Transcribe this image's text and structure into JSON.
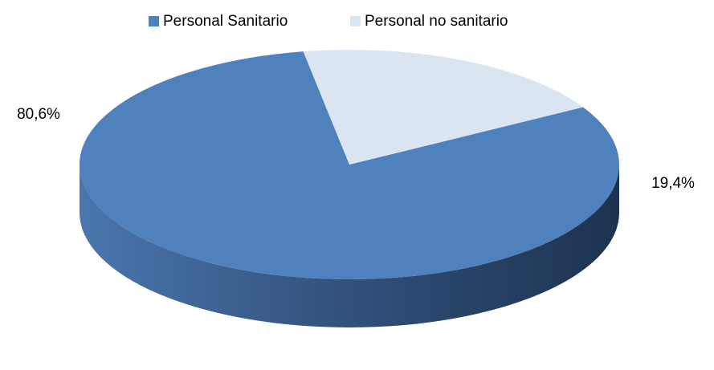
{
  "chart_data": {
    "type": "pie",
    "categories": [
      "Personal Sanitario",
      "Personal no sanitario"
    ],
    "values": [
      80.6,
      19.4
    ],
    "value_labels": [
      "80,6%",
      "19,4%"
    ],
    "colors": [
      "#4f81bd",
      "#dbe5f1"
    ],
    "legend": "top"
  }
}
